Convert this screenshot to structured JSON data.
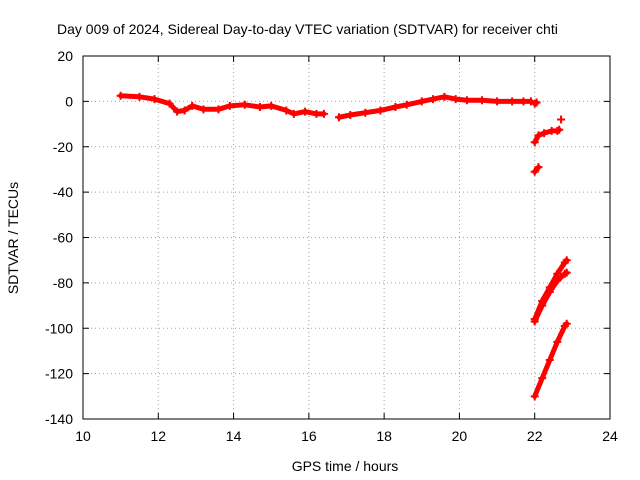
{
  "chart_data": {
    "type": "scatter",
    "title": "Day 009 of 2024, Sidereal Day-to-day VTEC variation (SDTVAR) for receiver chti",
    "xlabel": "GPS time / hours",
    "ylabel": "SDTVAR / TECUs",
    "xlim": [
      10,
      24
    ],
    "ylim": [
      -140,
      20
    ],
    "xticks": [
      10,
      12,
      14,
      16,
      18,
      20,
      22,
      24
    ],
    "yticks": [
      20,
      0,
      -20,
      -40,
      -60,
      -80,
      -100,
      -120,
      -140
    ],
    "grid": true,
    "marker_color": "#ff0000",
    "series": [
      {
        "points": [
          [
            11.0,
            2.5
          ],
          [
            11.5,
            2.0
          ],
          [
            11.9,
            1.0
          ],
          [
            12.3,
            -1.0
          ],
          [
            12.5,
            -4.5
          ],
          [
            12.7,
            -4.0
          ],
          [
            12.9,
            -2.0
          ],
          [
            13.2,
            -3.5
          ],
          [
            13.6,
            -3.5
          ],
          [
            13.9,
            -2.0
          ],
          [
            14.3,
            -1.5
          ],
          [
            14.7,
            -2.5
          ],
          [
            15.0,
            -2.0
          ],
          [
            15.4,
            -4.0
          ],
          [
            15.6,
            -5.5
          ],
          [
            15.9,
            -4.5
          ],
          [
            16.2,
            -5.5
          ],
          [
            16.4,
            -5.5
          ]
        ]
      },
      {
        "points": [
          [
            16.8,
            -7.0
          ],
          [
            17.1,
            -6.0
          ],
          [
            17.5,
            -5.0
          ],
          [
            17.9,
            -4.0
          ],
          [
            18.3,
            -2.5
          ],
          [
            18.6,
            -1.5
          ],
          [
            19.0,
            0.0
          ],
          [
            19.3,
            1.0
          ],
          [
            19.6,
            2.0
          ],
          [
            19.9,
            1.0
          ],
          [
            20.2,
            0.5
          ],
          [
            20.6,
            0.5
          ],
          [
            21.0,
            0.0
          ],
          [
            21.4,
            0.0
          ],
          [
            21.7,
            0.0
          ],
          [
            21.9,
            0.0
          ]
        ]
      },
      {
        "points": [
          [
            22.0,
            -1.0
          ],
          [
            22.05,
            -0.5
          ]
        ]
      },
      {
        "points": [
          [
            22.0,
            -18.0
          ],
          [
            22.1,
            -15.0
          ],
          [
            22.25,
            -14.0
          ],
          [
            22.45,
            -13.0
          ],
          [
            22.6,
            -13.0
          ],
          [
            22.65,
            -12.5
          ]
        ]
      },
      {
        "points": [
          [
            22.7,
            -8.0
          ]
        ]
      },
      {
        "points": [
          [
            22.0,
            -31.0
          ],
          [
            22.1,
            -29.0
          ]
        ]
      },
      {
        "points": [
          [
            22.0,
            -97.0
          ],
          [
            22.2,
            -90.0
          ],
          [
            22.4,
            -84.0
          ],
          [
            22.6,
            -79.0
          ],
          [
            22.8,
            -76.0
          ],
          [
            22.85,
            -75.5
          ]
        ]
      },
      {
        "points": [
          [
            22.0,
            -96.0
          ],
          [
            22.2,
            -88.0
          ],
          [
            22.4,
            -82.0
          ],
          [
            22.6,
            -76.0
          ],
          [
            22.8,
            -71.0
          ],
          [
            22.85,
            -70.0
          ]
        ]
      },
      {
        "points": [
          [
            22.0,
            -130.0
          ],
          [
            22.2,
            -122.0
          ],
          [
            22.4,
            -114.0
          ],
          [
            22.6,
            -106.0
          ],
          [
            22.8,
            -99.0
          ],
          [
            22.85,
            -98.0
          ]
        ]
      }
    ]
  }
}
